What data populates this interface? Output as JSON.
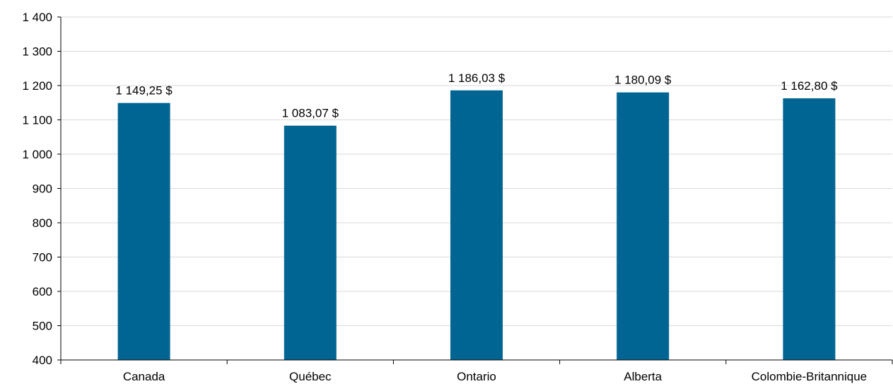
{
  "chart_data": {
    "type": "bar",
    "categories": [
      "Canada",
      "Québec",
      "Ontario",
      "Alberta",
      "Colombie-Britannique"
    ],
    "values": [
      1149.25,
      1083.07,
      1186.03,
      1180.09,
      1162.8
    ],
    "data_labels": [
      "1 149,25 $",
      "1 083,07 $",
      "1 186,03 $",
      "1 180,09 $",
      "1 162,80 $"
    ],
    "ylim": [
      400,
      1400
    ],
    "yticks": [
      400,
      500,
      600,
      700,
      800,
      900,
      1000,
      1100,
      1200,
      1300,
      1400
    ],
    "ytick_labels": [
      "400",
      "500",
      "600",
      "700",
      "800",
      "900",
      "1 000",
      "1 100",
      "1 200",
      "1 300",
      "1 400"
    ],
    "grid": true,
    "bar_color": "#006592",
    "grid_color": "#d9d9d9",
    "axis_color": "#000000"
  }
}
